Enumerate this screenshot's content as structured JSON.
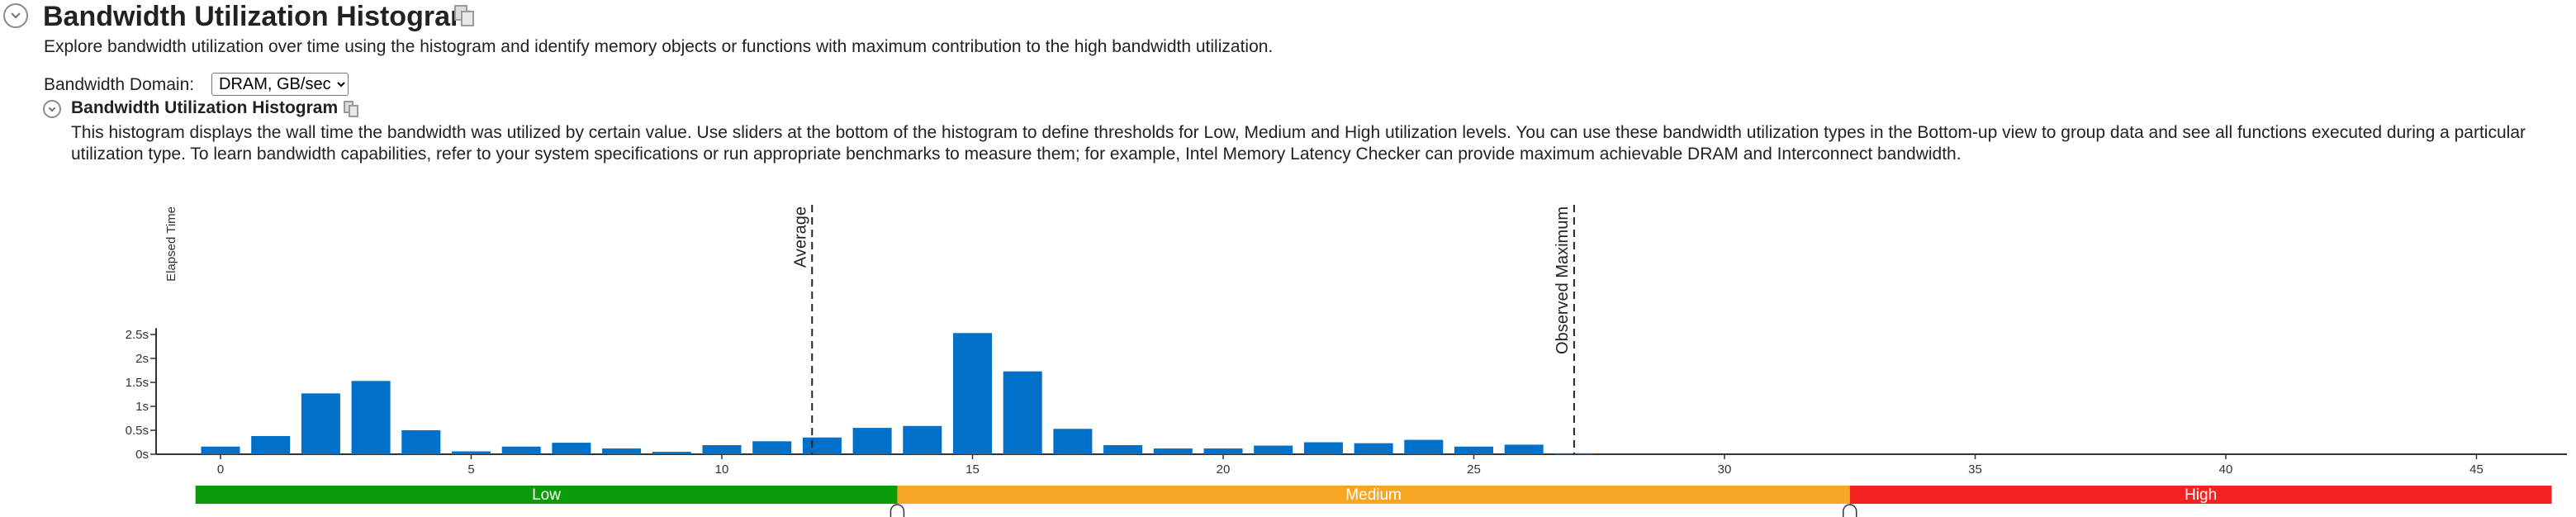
{
  "header": {
    "title": "Bandwidth Utilization Histogram",
    "description": "Explore bandwidth utilization over time using the histogram and identify memory objects or functions with maximum contribution to the high bandwidth utilization."
  },
  "domain": {
    "label": "Bandwidth Domain:",
    "selected": "DRAM, GB/sec"
  },
  "section": {
    "title": "Bandwidth Utilization Histogram",
    "description": "This histogram displays the wall time the bandwidth was utilized by certain value. Use sliders at the bottom of the histogram to define thresholds for Low, Medium and High utilization levels. You can use these bandwidth utilization types in the Bottom-up view to group data and see all functions executed during a particular utilization type. To learn bandwidth capabilities, refer to your system specifications or run appropriate benchmarks to measure them; for example, Intel Memory Latency Checker can provide maximum achievable DRAM and Interconnect bandwidth."
  },
  "chart_data": {
    "type": "bar",
    "ylabel": "Elapsed Time",
    "xlim": [
      -1,
      47
    ],
    "ylim": [
      0,
      2.6
    ],
    "x_ticks": [
      0,
      5,
      10,
      15,
      20,
      25,
      30,
      35,
      40,
      45
    ],
    "y_ticks": [
      {
        "value": 0,
        "label": "0s"
      },
      {
        "value": 0.5,
        "label": "0.5s"
      },
      {
        "value": 1,
        "label": "1s"
      },
      {
        "value": 1.5,
        "label": "1.5s"
      },
      {
        "value": 2,
        "label": "2s"
      },
      {
        "value": 2.5,
        "label": "2.5s"
      }
    ],
    "x": [
      0,
      1,
      2,
      3,
      4,
      5,
      6,
      7,
      8,
      9,
      10,
      11,
      12,
      13,
      14,
      15,
      16,
      17,
      18,
      19,
      20,
      21,
      22,
      23,
      24,
      25,
      26,
      27
    ],
    "values": [
      0.16,
      0.38,
      1.27,
      1.53,
      0.5,
      0.06,
      0.16,
      0.24,
      0.12,
      0.05,
      0.19,
      0.27,
      0.35,
      0.55,
      0.59,
      2.53,
      1.73,
      0.53,
      0.19,
      0.12,
      0.12,
      0.18,
      0.25,
      0.23,
      0.3,
      0.16,
      0.2,
      0.02
    ],
    "bar_color": "#0070c8",
    "markers": [
      {
        "label": "Average",
        "x": 11.8,
        "style": "dashed"
      },
      {
        "label": "Observed Maximum",
        "x": 27,
        "style": "dashed"
      }
    ],
    "utilization_zones": [
      {
        "label": "Low",
        "from": -0.5,
        "to": 13.5,
        "color": "#0a9a0a"
      },
      {
        "label": "Medium",
        "from": 13.5,
        "to": 32.5,
        "color": "#f5a623"
      },
      {
        "label": "High",
        "from": 32.5,
        "to": 46.5,
        "color": "#f52222"
      }
    ],
    "thresholds": [
      13.5,
      32.5
    ]
  }
}
